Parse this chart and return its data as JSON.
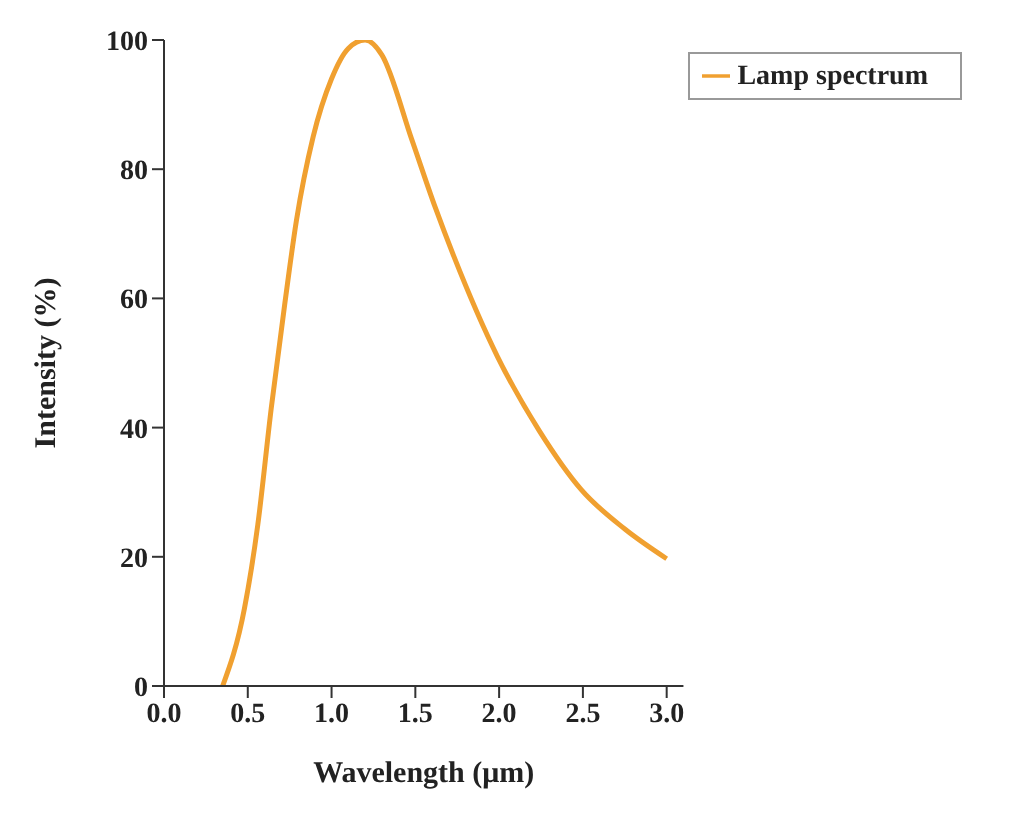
{
  "chart_data": {
    "type": "line",
    "xlabel": "Wavelength (μm)",
    "ylabel": "Intensity (%)",
    "xlim": [
      0,
      3.1
    ],
    "xticks": [
      {
        "value": 0,
        "label": "0.0"
      },
      0.5,
      {
        "value": 1,
        "label": "1.0"
      },
      1.5,
      {
        "value": 2,
        "label": "2.0"
      },
      2.5,
      {
        "value": 3,
        "label": "3.0"
      }
    ],
    "ylim": [
      0,
      100
    ],
    "yticks": [
      0,
      20,
      40,
      60,
      80,
      100
    ],
    "grid": false,
    "legend": "top right",
    "marker": "none",
    "line_style": "solid",
    "series": [
      {
        "name": "Lamp spectrum",
        "color": "#f0a030",
        "x": [
          0.35,
          0.48,
          0.56,
          0.64,
          0.72,
          0.79,
          0.89,
          1.0,
          1.1,
          1.2,
          1.3,
          1.48,
          1.62,
          1.73,
          1.99,
          2.24,
          2.49,
          2.75,
          3.0
        ],
        "values": [
          0,
          12,
          25,
          43,
          59,
          72,
          85,
          94,
          98.7,
          100,
          97.7,
          84.5,
          74,
          66.5,
          51,
          39.5,
          30.4,
          24.3,
          19.7
        ]
      }
    ]
  }
}
